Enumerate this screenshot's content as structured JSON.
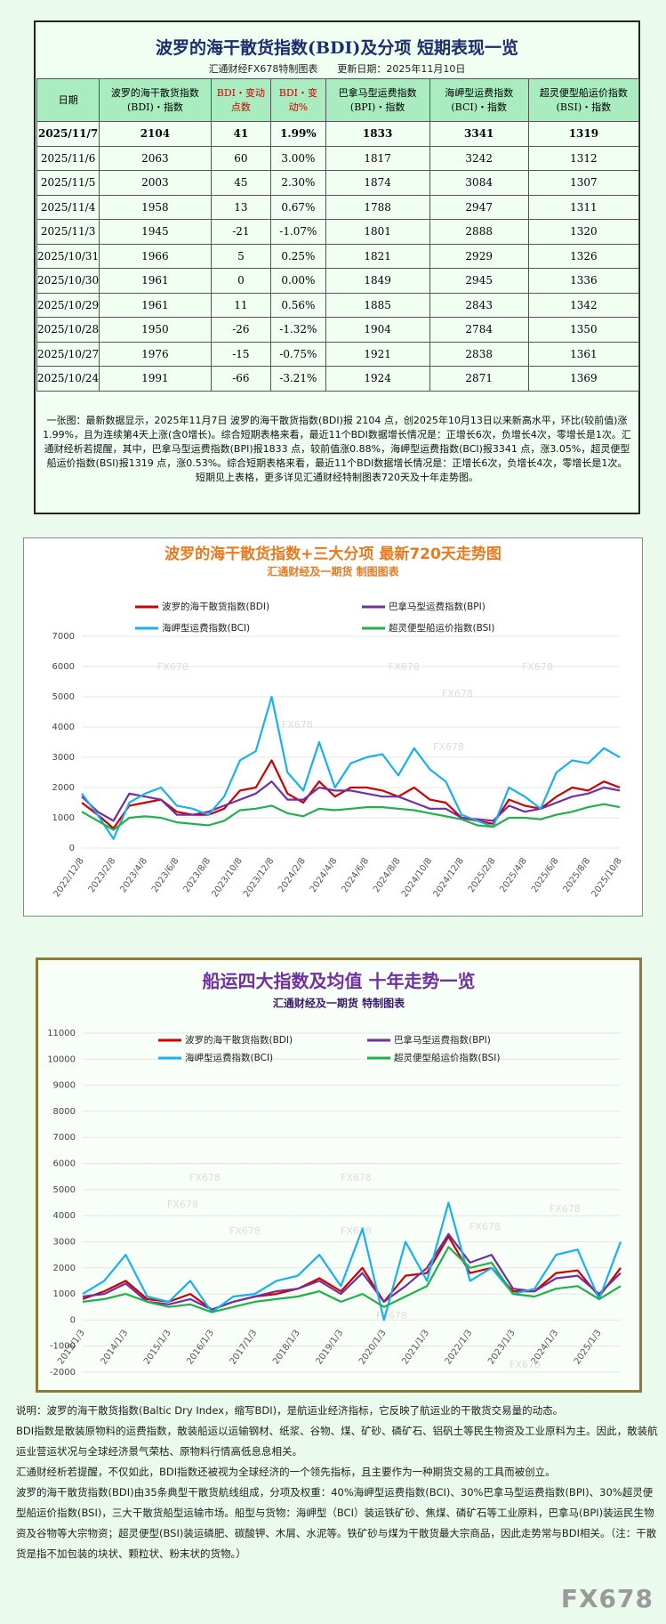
{
  "header": {
    "title": "波罗的海干散货指数(BDI)及分项 短期表现一览",
    "subtitle": "汇通财经FX678特制图表　　更新日期：2025年11月10日"
  },
  "table": {
    "columns": [
      "日期",
      "波罗的海干散货指数(BDI)・指数",
      "BDI・变动点数",
      "BDI・变动%",
      "巴拿马型运费指数(BPI)・指数",
      "海岬型运费指数(BCI)・指数",
      "超灵便型船运价指数(BSI)・指数"
    ],
    "rows": [
      [
        "2025/11/7",
        2104,
        41,
        "1.99%",
        1833,
        3341,
        1319
      ],
      [
        "2025/11/6",
        2063,
        60,
        "3.00%",
        1817,
        3242,
        1312
      ],
      [
        "2025/11/5",
        2003,
        45,
        "2.30%",
        1874,
        3084,
        1307
      ],
      [
        "2025/11/4",
        1958,
        13,
        "0.67%",
        1788,
        2947,
        1311
      ],
      [
        "2025/11/3",
        1945,
        -21,
        "-1.07%",
        1801,
        2888,
        1320
      ],
      [
        "2025/10/31",
        1966,
        5,
        "0.25%",
        1821,
        2929,
        1326
      ],
      [
        "2025/10/30",
        1961,
        0,
        "0.00%",
        1849,
        2945,
        1336
      ],
      [
        "2025/10/29",
        1961,
        11,
        "0.56%",
        1885,
        2843,
        1342
      ],
      [
        "2025/10/28",
        1950,
        -26,
        "-1.32%",
        1904,
        2784,
        1350
      ],
      [
        "2025/10/27",
        1976,
        -15,
        "-0.75%",
        1921,
        2838,
        1361
      ],
      [
        "2025/10/24",
        1991,
        -66,
        "-3.21%",
        1924,
        2871,
        1369
      ]
    ]
  },
  "summary": "一张图：最新数据显示，2025年11月7日 波罗的海干散货指数(BDI)报 2104 点，创2025年10月13日以来新高水平，环比(较前值)涨1.99%，且为连续第4天上涨(含0增长)。综合短期表格来看，最近11个BDI数据增长情况是：正增长6次，负增长4次，零增长是1次。汇通财经析若提醒，其中，巴拿马型运费指数(BPI)报1833 点，较前值涨0.88%，海岬型运费指数(BCI)报3341 点，涨3.05%，超灵便型船运价指数(BSI)报1319 点，涨0.53%。综合短期表格来看，最近11个BDI数据增长情况是：正增长6次，负增长4次，零增长是1次。短期见上表格，更多详见汇通财经特制图表720天及十年走势图。",
  "chart_data": [
    {
      "type": "line",
      "title": "波罗的海干散货指数+三大分项  最新720天走势图",
      "subtitle": "汇通财经及一期货  制图图表",
      "watermark": "FX678",
      "categories": [
        "2022/12/8",
        null,
        "2023/2/8",
        null,
        "2023/4/8",
        null,
        "2023/6/8",
        null,
        "2023/8/8",
        null,
        "2023/10/8",
        null,
        "2023/12/8",
        null,
        "2024/2/8",
        null,
        "2024/4/8",
        null,
        "2024/6/8",
        null,
        "2024/8/8",
        null,
        "2024/10/8",
        null,
        "2024/12/8",
        null,
        "2025/2/8",
        null,
        "2025/4/8",
        null,
        "2025/6/8",
        null,
        "2025/8/8",
        null,
        "2025/10/8"
      ],
      "ylim": [
        0,
        7000
      ],
      "yticks": [
        0,
        1000,
        2000,
        3000,
        4000,
        5000,
        6000,
        7000
      ],
      "grid": true,
      "series": [
        {
          "name": "波罗的海干散货指数(BDI)",
          "color": "#cc0000",
          "values": [
            1500,
            1100,
            650,
            1400,
            1500,
            1600,
            1200,
            1100,
            1100,
            1300,
            1900,
            2000,
            2900,
            1800,
            1500,
            2200,
            1700,
            2000,
            2000,
            1900,
            1700,
            2000,
            1600,
            1500,
            1000,
            900,
            800,
            1600,
            1400,
            1300,
            1700,
            2000,
            1900,
            2200,
            2000
          ]
        },
        {
          "name": "巴拿马型运费指数(BPI)",
          "color": "#7030a0",
          "values": [
            1700,
            1200,
            900,
            1800,
            1700,
            1600,
            1100,
            1100,
            1200,
            1400,
            1600,
            1800,
            2200,
            1600,
            1600,
            2000,
            1900,
            1900,
            1800,
            1700,
            1700,
            1500,
            1300,
            1300,
            1000,
            950,
            900,
            1400,
            1200,
            1300,
            1500,
            1700,
            1800,
            2000,
            1900
          ]
        },
        {
          "name": "海岬型运费指数(BCI)",
          "color": "#1ab0f0",
          "values": [
            1800,
            1100,
            300,
            1500,
            1800,
            2000,
            1400,
            1300,
            1100,
            1700,
            2900,
            3200,
            5000,
            2500,
            1900,
            3500,
            2000,
            2800,
            3000,
            3100,
            2400,
            3300,
            2600,
            2200,
            1100,
            900,
            700,
            2000,
            1700,
            1300,
            2500,
            2900,
            2800,
            3300,
            3000
          ]
        },
        {
          "name": "超灵便型船运价指数(BSI)",
          "color": "#22b04c",
          "values": [
            1200,
            900,
            600,
            1000,
            1050,
            1000,
            850,
            800,
            750,
            900,
            1250,
            1300,
            1400,
            1150,
            1050,
            1300,
            1250,
            1300,
            1350,
            1350,
            1300,
            1250,
            1150,
            1050,
            950,
            750,
            700,
            1000,
            1000,
            950,
            1100,
            1200,
            1350,
            1450,
            1350
          ]
        }
      ]
    },
    {
      "type": "line",
      "title": "船运四大指数及均值 十年走势一览",
      "subtitle": "汇通财经及一期货 特制图表",
      "watermark": "FX678",
      "categories": [
        "2013/1/3",
        null,
        "2014/1/3",
        null,
        "2015/1/3",
        null,
        "2016/1/3",
        null,
        "2017/1/3",
        null,
        "2018/1/3",
        null,
        "2019/1/3",
        null,
        "2020/1/3",
        null,
        "2021/1/3",
        null,
        "2022/1/3",
        null,
        "2023/1/3",
        null,
        "2024/1/3",
        null,
        "2025/1/3",
        null
      ],
      "ylim": [
        -2000,
        11000
      ],
      "yticks": [
        -2000,
        -1000,
        0,
        1000,
        2000,
        3000,
        4000,
        5000,
        6000,
        7000,
        8000,
        9000,
        10000,
        11000
      ],
      "grid": true,
      "series": [
        {
          "name": "波罗的海干散货指数(BDI)",
          "color": "#cc0000",
          "values": [
            800,
            1100,
            1500,
            800,
            700,
            1000,
            400,
            700,
            900,
            1000,
            1200,
            1600,
            1100,
            2000,
            700,
            1700,
            1800,
            3200,
            1800,
            2000,
            1100,
            1100,
            1800,
            1900,
            900,
            2000
          ]
        },
        {
          "name": "巴拿马型运费指数(BPI)",
          "color": "#7030a0",
          "values": [
            900,
            1000,
            1400,
            700,
            600,
            800,
            400,
            700,
            900,
            1100,
            1200,
            1500,
            1000,
            1800,
            700,
            1300,
            2000,
            3300,
            2200,
            2500,
            1200,
            1100,
            1600,
            1700,
            1000,
            1800
          ]
        },
        {
          "name": "海岬型运费指数(BCI)",
          "color": "#1ab0f0",
          "values": [
            1000,
            1500,
            2500,
            900,
            700,
            1500,
            300,
            900,
            1000,
            1500,
            1700,
            2500,
            1300,
            3500,
            0,
            3000,
            1500,
            4500,
            1500,
            2000,
            1000,
            1200,
            2500,
            2700,
            800,
            3000
          ]
        },
        {
          "name": "超灵便型船运价指数(BSI)",
          "color": "#22b04c",
          "values": [
            700,
            800,
            1000,
            700,
            500,
            600,
            300,
            500,
            700,
            800,
            900,
            1100,
            700,
            1000,
            500,
            900,
            1300,
            2800,
            2000,
            2200,
            1000,
            900,
            1200,
            1300,
            800,
            1300
          ]
        }
      ]
    }
  ],
  "notes": [
    "说明：波罗的海干散货指数(Baltic Dry Index，缩写BDI)，是航运业经济指标，它反映了航运业的干散货交易量的动态。",
    "BDI指数是散装原物料的运费指数，散装船运以运输钢材、纸浆、谷物、煤、矿砂、磷矿石、铝矾土等民生物资及工业原料为主。因此，散装航运业营运状况与全球经济景气荣枯、原物料行情高低息息相关。",
    "汇通财经析若提醒，不仅如此，BDI指数还被视为全球经济的一个领先指标，且主要作为一种期货交易的工具而被创立。",
    "波罗的海干散货指数(BDI)由35条典型干散货航线组成，分项及权重：40%海岬型运费指数(BCI)、30%巴拿马型运费指数(BPI)、30%超灵便型船运价指数(BSI)，三大干散货船型运输市场。船型与货物：海岬型（BCI）装运铁矿砂、焦煤、磷矿石等工业原料，巴拿马(BPI)装运民生物资及谷物等大宗物资；超灵便型(BSI)装运磷肥、碳酸钾、木屑、水泥等。铁矿砂与煤为干散货最大宗商品，因此走势常与BDI相关。（注：干散货是指不加包装的块状、颗粒状、粉末状的货物。）"
  ],
  "logo": "FX678"
}
